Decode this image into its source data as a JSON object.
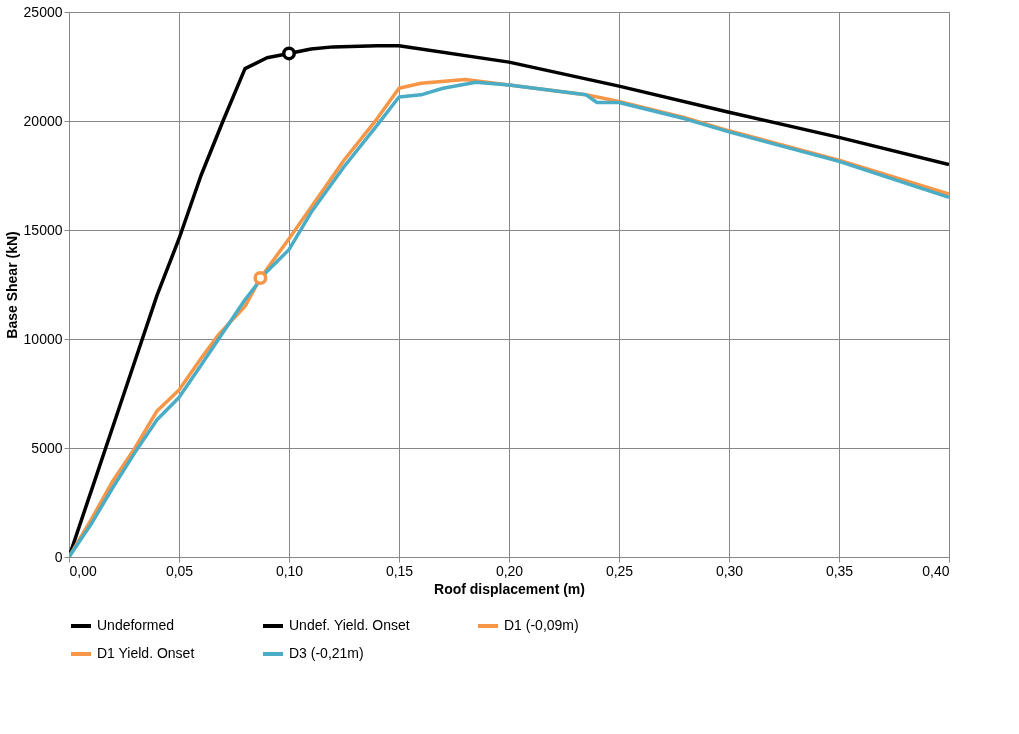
{
  "chart_data": {
    "type": "line",
    "xlabel": "Roof displacement (m)",
    "ylabel": "Base Shear (kN)",
    "xlim": [
      0,
      0.4
    ],
    "ylim": [
      0,
      25000
    ],
    "xticks": [
      {
        "value": 0,
        "label": "0,00"
      },
      {
        "value": 0.05,
        "label": "0,05"
      },
      {
        "value": 0.1,
        "label": "0,10"
      },
      {
        "value": 0.15,
        "label": "0,15"
      },
      {
        "value": 0.2,
        "label": "0,20"
      },
      {
        "value": 0.25,
        "label": "0,25"
      },
      {
        "value": 0.3,
        "label": "0,30"
      },
      {
        "value": 0.35,
        "label": "0,35"
      },
      {
        "value": 0.4,
        "label": "0,40"
      }
    ],
    "yticks": [
      0,
      5000,
      10000,
      15000,
      20000,
      25000
    ],
    "grid": true,
    "legend": "bottom",
    "line_style": "solid",
    "series": [
      {
        "name": "Undeformed",
        "color": "#000000",
        "x": [
          0,
          0.01,
          0.02,
          0.03,
          0.04,
          0.05,
          0.06,
          0.07,
          0.08,
          0.09,
          0.1,
          0.11,
          0.12,
          0.14,
          0.15,
          0.2,
          0.25,
          0.3,
          0.35,
          0.4
        ],
        "values": [
          0,
          3000,
          6000,
          9000,
          12000,
          14600,
          17500,
          20000,
          22400,
          22900,
          23100,
          23300,
          23400,
          23450,
          23450,
          22700,
          21600,
          20400,
          19250,
          18000
        ]
      },
      {
        "name": "Undef. Yield. Onset",
        "type": "scatter",
        "marker": "circle",
        "color": "#000000",
        "x": [
          0.1
        ],
        "values": [
          23100
        ]
      },
      {
        "name": "D1 (-0,09m)",
        "color": "#f79646",
        "x": [
          0,
          0.01,
          0.02,
          0.03,
          0.04,
          0.05,
          0.06,
          0.068,
          0.08,
          0.087,
          0.1,
          0.125,
          0.14,
          0.15,
          0.16,
          0.18,
          0.2,
          0.235,
          0.25,
          0.28,
          0.3,
          0.35,
          0.4
        ],
        "values": [
          0,
          1700,
          3500,
          5000,
          6700,
          7660,
          9100,
          10200,
          11500,
          12800,
          14600,
          18200,
          20100,
          21500,
          21730,
          21900,
          21650,
          21200,
          20900,
          20150,
          19550,
          18200,
          16650
        ]
      },
      {
        "name": "D1 Yield. Onset",
        "type": "scatter",
        "marker": "circle",
        "color": "#f79646",
        "x": [
          0.087
        ],
        "values": [
          12800
        ]
      },
      {
        "name": "D3 (-0,21m)",
        "color": "#4bacc6",
        "x": [
          0,
          0.01,
          0.02,
          0.03,
          0.04,
          0.05,
          0.06,
          0.07,
          0.08,
          0.09,
          0.1,
          0.11,
          0.125,
          0.14,
          0.15,
          0.16,
          0.17,
          0.185,
          0.2,
          0.235,
          0.24,
          0.25,
          0.28,
          0.3,
          0.35,
          0.4
        ],
        "values": [
          0,
          1500,
          3200,
          4800,
          6300,
          7320,
          8800,
          10300,
          11800,
          13100,
          14100,
          15800,
          17900,
          19800,
          21100,
          21200,
          21500,
          21780,
          21650,
          21200,
          20850,
          20850,
          20100,
          19500,
          18150,
          16500
        ]
      }
    ]
  }
}
